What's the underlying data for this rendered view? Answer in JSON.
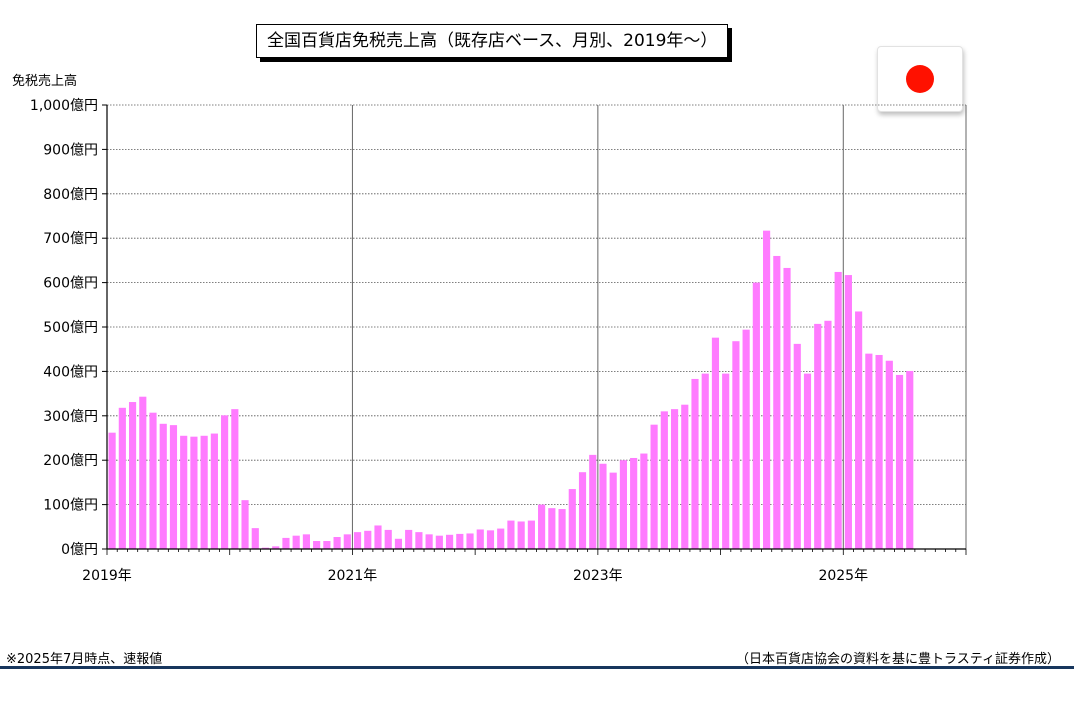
{
  "header": {
    "title": "全国百貨店免税売上高（既存店ベース、月別、2019年～）"
  },
  "footer": {
    "note": "※2025年7月時点、速報値",
    "source": "（日本百貨店協会の資料を基に豊トラスティ証券作成）"
  },
  "colors": {
    "bar": "#ff7bff",
    "grid": "#555555",
    "flag_sun": "#ff1100",
    "footer_rule": "#17365d"
  },
  "flag_icon": "japan-flag-icon",
  "chart_data": {
    "type": "bar",
    "ylabel": "免税売上高",
    "ylim": [
      0,
      1000
    ],
    "y_ticks": [
      0,
      100,
      200,
      300,
      400,
      500,
      600,
      700,
      800,
      900,
      1000
    ],
    "y_tick_labels": [
      "0億円",
      "100億円",
      "200億円",
      "300億円",
      "400億円",
      "500億円",
      "600億円",
      "700億円",
      "800億円",
      "900億円",
      "1,000億円"
    ],
    "x_tick_labels": [
      "2019年",
      "2021年",
      "2023年",
      "2025年"
    ],
    "grid": true,
    "start": "2019-01",
    "end": "2025-07",
    "values": [
      262,
      318,
      331,
      343,
      307,
      282,
      279,
      255,
      253,
      255,
      260,
      301,
      315,
      110,
      47,
      3,
      6,
      25,
      30,
      33,
      18,
      18,
      27,
      33,
      38,
      41,
      53,
      43,
      23,
      43,
      38,
      33,
      30,
      32,
      34,
      35,
      44,
      42,
      46,
      64,
      62,
      64,
      100,
      92,
      90,
      135,
      173,
      212,
      192,
      172,
      200,
      205,
      215,
      280,
      310,
      315,
      325,
      383,
      395,
      476,
      395,
      468,
      494,
      600,
      717,
      660,
      633,
      462,
      395,
      507,
      514,
      624,
      617,
      535,
      440,
      437,
      424,
      392,
      401
    ]
  }
}
